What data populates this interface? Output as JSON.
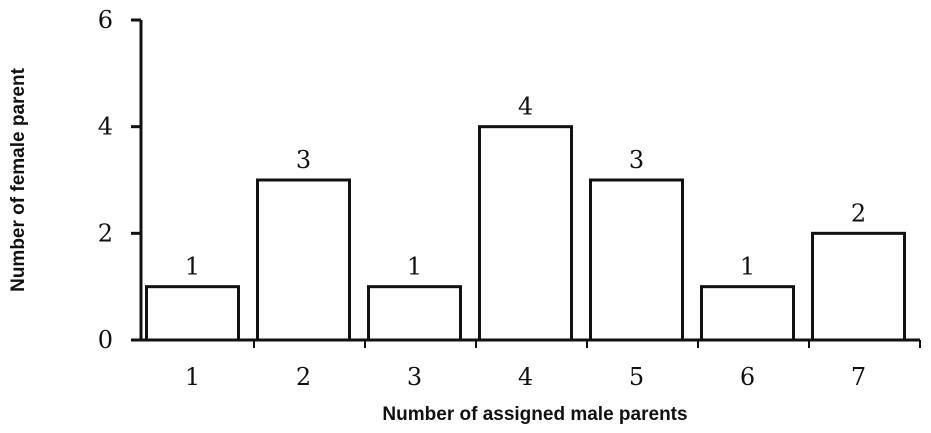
{
  "chart_data": {
    "type": "bar",
    "categories": [
      "1",
      "2",
      "3",
      "4",
      "5",
      "6",
      "7"
    ],
    "values": [
      1,
      3,
      1,
      4,
      3,
      1,
      2
    ],
    "data_labels": [
      "1",
      "3",
      "1",
      "4",
      "3",
      "1",
      "2"
    ],
    "xlabel": "Number of assigned male parents",
    "ylabel": "Number of female parent",
    "ylim": [
      0,
      6
    ],
    "yticks": [
      "0",
      "2",
      "4",
      "6"
    ],
    "grid": false,
    "bar_fill": "#ffffff",
    "bar_stroke": "#111111"
  }
}
